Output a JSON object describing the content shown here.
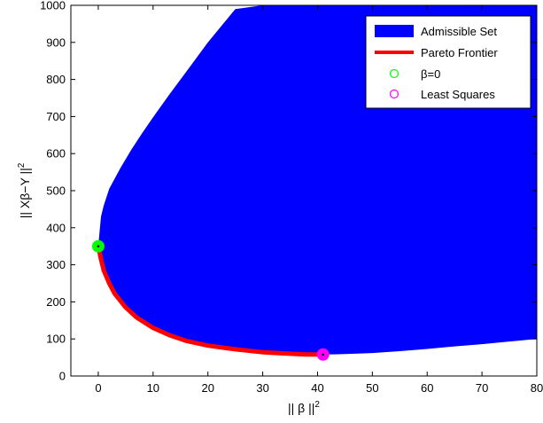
{
  "chart_data": {
    "type": "area",
    "xlabel": "|| β ||",
    "xlabel_sup": "2",
    "ylabel": "|| Xβ−Y ||",
    "ylabel_sup": "2",
    "xlim": [
      -5,
      80
    ],
    "ylim": [
      0,
      1000
    ],
    "xticks": [
      0,
      10,
      20,
      30,
      40,
      50,
      60,
      70,
      80
    ],
    "xticklabels": [
      "0",
      "10",
      "20",
      "30",
      "40",
      "50",
      "60",
      "70",
      "80"
    ],
    "yticks": [
      0,
      100,
      200,
      300,
      400,
      500,
      600,
      700,
      800,
      900,
      1000
    ],
    "yticklabels": [
      "0",
      "100",
      "200",
      "300",
      "400",
      "500",
      "600",
      "700",
      "800",
      "900",
      "1000"
    ],
    "grid": false,
    "legend_position": "top-right",
    "series": [
      {
        "name": "Admissible Set",
        "kind": "filled-region",
        "color": "#0000ff",
        "upper_x": [
          0,
          0.5,
          1,
          2,
          4,
          6,
          8,
          10,
          13,
          16,
          20,
          25,
          30,
          35,
          40,
          45,
          50,
          55,
          60,
          65,
          70,
          75,
          80
        ],
        "upper_y": [
          350,
          430,
          460,
          505,
          560,
          610,
          655,
          698,
          760,
          820,
          900,
          990,
          1000,
          1000,
          1000,
          1000,
          1000,
          1000,
          1000,
          1000,
          1000,
          1000,
          1000
        ],
        "lower_x": [
          0,
          0.5,
          1,
          2,
          3,
          5,
          7,
          10,
          13,
          16,
          20,
          25,
          30,
          35,
          38,
          40,
          41,
          45,
          50,
          55,
          60,
          65,
          70,
          75,
          80
        ],
        "lower_y": [
          350,
          315,
          285,
          250,
          222,
          185,
          158,
          130,
          110,
          95,
          82,
          72,
          64,
          60,
          58,
          58,
          58,
          59,
          62,
          67,
          73,
          80,
          86,
          93,
          100
        ]
      },
      {
        "name": "Pareto Frontier",
        "kind": "line",
        "color": "#ff0000",
        "x": [
          0,
          0.5,
          1,
          2,
          3,
          5,
          7,
          10,
          13,
          16,
          20,
          25,
          30,
          35,
          38,
          40,
          41
        ],
        "y": [
          350,
          315,
          285,
          250,
          222,
          185,
          158,
          130,
          110,
          95,
          82,
          72,
          64,
          60,
          58,
          58,
          58
        ]
      },
      {
        "name": "β=0",
        "kind": "marker",
        "color": "#00ff00",
        "x": [
          0
        ],
        "y": [
          350
        ]
      },
      {
        "name": "Least Squares",
        "kind": "marker",
        "color": "#ff00ff",
        "x": [
          41
        ],
        "y": [
          58
        ]
      }
    ]
  }
}
